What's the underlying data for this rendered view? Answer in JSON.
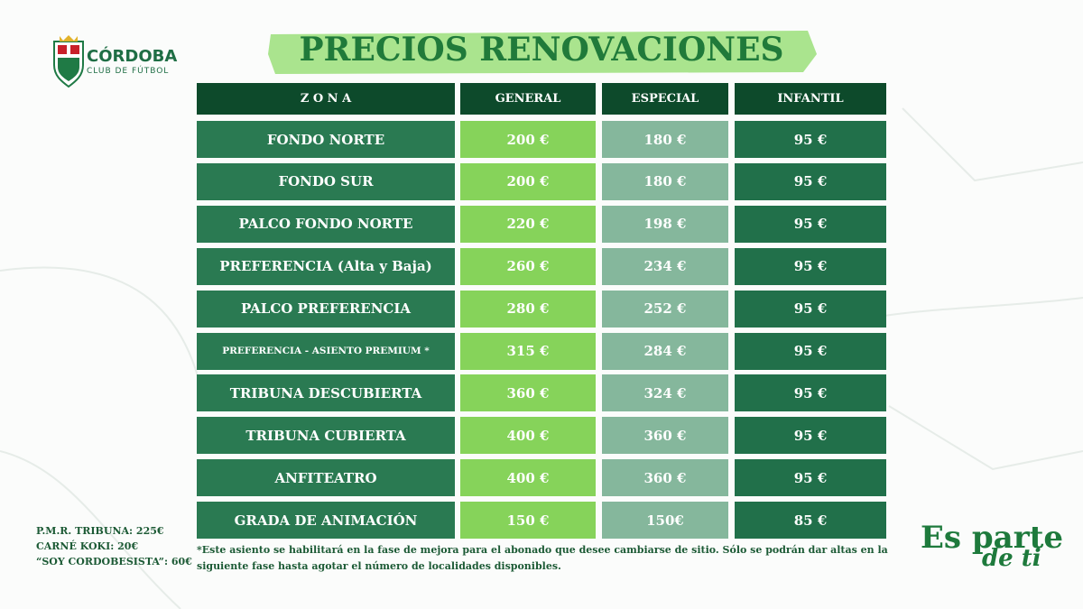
{
  "logo": {
    "name": "CÓRDOBA",
    "subtitle": "CLUB DE FÚTBOL"
  },
  "header": {
    "title": "PRECIOS RENOVACIONES"
  },
  "table": {
    "columns": [
      "Z O N A",
      "GENERAL",
      "ESPECIAL",
      "INFANTIL"
    ],
    "rows": [
      [
        "FONDO NORTE",
        "200 €",
        "180 €",
        "95 €"
      ],
      [
        "FONDO SUR",
        "200 €",
        "180 €",
        "95 €"
      ],
      [
        "PALCO FONDO NORTE",
        "220 €",
        "198 €",
        "95 €"
      ],
      [
        "PREFERENCIA (Alta y Baja)",
        "260 €",
        "234 €",
        "95 €"
      ],
      [
        "PALCO PREFERENCIA",
        "280 €",
        "252 €",
        "95 €"
      ],
      [
        "PREFERENCIA - ASIENTO PREMIUM *",
        "315 €",
        "284 €",
        "95 €"
      ],
      [
        "TRIBUNA DESCUBIERTA",
        "360 €",
        "324 €",
        "95 €"
      ],
      [
        "TRIBUNA CUBIERTA",
        "400 €",
        "360 €",
        "95 €"
      ],
      [
        "ANFITEATRO",
        "400 €",
        "360 €",
        "95 €"
      ],
      [
        "GRADA DE ANIMACIÓN",
        "150 €",
        "150€",
        "85 €"
      ]
    ]
  },
  "side_notes": [
    "P.M.R. TRIBUNA: 225€",
    "CARNÉ KOKI: 20€",
    "“SOY CORDOBESISTA”: 60€"
  ],
  "footnote": "*Este asiento se habilitará en la fase de mejora para el abonado que desee cambiarse de sitio. Sólo se podrán dar altas en la siguiente fase hasta agotar el número de localidades disponibles.",
  "slogan": [
    "Es parte",
    "de ti"
  ]
}
